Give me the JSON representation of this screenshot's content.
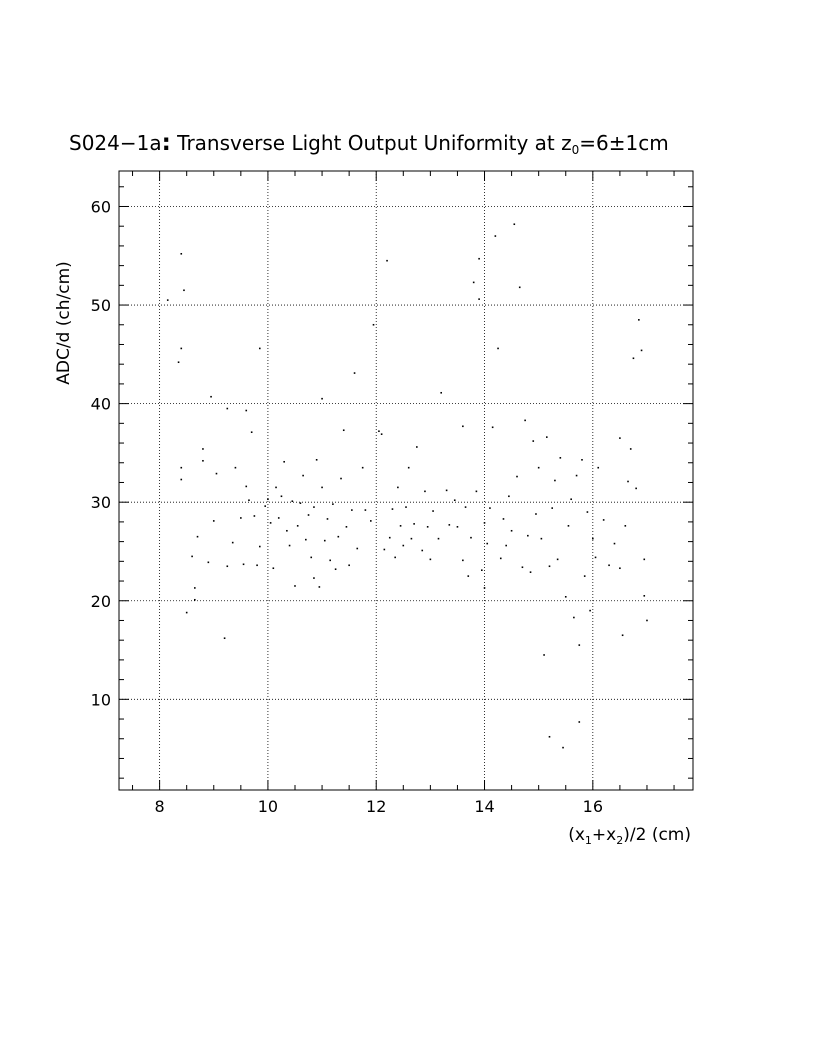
{
  "chart_data": {
    "type": "scatter",
    "title": {
      "part1": "S024−1a",
      "colon": ":",
      "part2": " Transverse Light Output Uniformity at z",
      "sub": "0",
      "part3": "=6±1cm"
    },
    "xlabel": {
      "p1": "(x",
      "s1": "1",
      "p2": "+x",
      "s2": "2",
      "p3": ")/2 (cm)"
    },
    "ylabel": "ADC/d (ch/cm)",
    "xlim": [
      7.25,
      17.85
    ],
    "ylim": [
      0.8,
      63.6
    ],
    "x_ticks": [
      "8",
      "10",
      "12",
      "14",
      "16"
    ],
    "y_ticks": [
      "10",
      "20",
      "30",
      "40",
      "50",
      "60"
    ],
    "grid": true,
    "marker_color": "#000000",
    "points": [
      [
        8.15,
        50.5
      ],
      [
        8.35,
        44.2
      ],
      [
        8.4,
        55.2
      ],
      [
        8.45,
        51.5
      ],
      [
        8.4,
        45.6
      ],
      [
        8.4,
        33.5
      ],
      [
        8.4,
        32.3
      ],
      [
        8.5,
        18.8
      ],
      [
        8.6,
        24.5
      ],
      [
        8.65,
        21.3
      ],
      [
        8.65,
        20.1
      ],
      [
        8.7,
        26.5
      ],
      [
        8.8,
        35.4
      ],
      [
        8.8,
        34.2
      ],
      [
        8.9,
        23.9
      ],
      [
        8.95,
        40.7
      ],
      [
        9.0,
        28.1
      ],
      [
        9.05,
        32.9
      ],
      [
        9.2,
        16.2
      ],
      [
        9.25,
        39.5
      ],
      [
        9.25,
        23.5
      ],
      [
        9.35,
        25.9
      ],
      [
        9.4,
        33.5
      ],
      [
        9.5,
        28.4
      ],
      [
        9.55,
        23.7
      ],
      [
        9.6,
        39.3
      ],
      [
        9.6,
        31.6
      ],
      [
        9.65,
        30.2
      ],
      [
        9.7,
        37.1
      ],
      [
        9.75,
        28.6
      ],
      [
        9.8,
        23.6
      ],
      [
        9.85,
        45.6
      ],
      [
        9.85,
        25.5
      ],
      [
        9.95,
        29.6
      ],
      [
        10.0,
        30.3
      ],
      [
        10.05,
        27.9
      ],
      [
        10.1,
        23.3
      ],
      [
        10.15,
        31.5
      ],
      [
        10.2,
        28.4
      ],
      [
        10.25,
        30.6
      ],
      [
        10.3,
        34.1
      ],
      [
        10.35,
        27.1
      ],
      [
        10.4,
        25.6
      ],
      [
        10.45,
        30.1
      ],
      [
        10.5,
        21.5
      ],
      [
        10.55,
        27.6
      ],
      [
        10.6,
        29.9
      ],
      [
        10.65,
        32.7
      ],
      [
        10.7,
        26.2
      ],
      [
        10.75,
        28.7
      ],
      [
        10.8,
        24.4
      ],
      [
        10.85,
        22.3
      ],
      [
        10.85,
        29.5
      ],
      [
        10.9,
        34.3
      ],
      [
        10.95,
        21.4
      ],
      [
        11.0,
        40.5
      ],
      [
        11.0,
        31.5
      ],
      [
        11.05,
        26.1
      ],
      [
        11.1,
        28.3
      ],
      [
        11.15,
        24.1
      ],
      [
        11.2,
        29.8
      ],
      [
        11.25,
        23.2
      ],
      [
        11.3,
        26.5
      ],
      [
        11.35,
        32.4
      ],
      [
        11.4,
        37.3
      ],
      [
        11.45,
        27.5
      ],
      [
        11.5,
        23.6
      ],
      [
        11.55,
        29.2
      ],
      [
        11.6,
        43.1
      ],
      [
        11.65,
        25.3
      ],
      [
        11.75,
        33.5
      ],
      [
        11.8,
        29.2
      ],
      [
        11.9,
        28.1
      ],
      [
        11.95,
        48.0
      ],
      [
        12.05,
        37.2
      ],
      [
        12.1,
        36.9
      ],
      [
        12.15,
        25.2
      ],
      [
        12.2,
        54.5
      ],
      [
        12.25,
        26.4
      ],
      [
        12.3,
        29.3
      ],
      [
        12.35,
        24.4
      ],
      [
        12.4,
        31.5
      ],
      [
        12.45,
        27.6
      ],
      [
        12.5,
        25.6
      ],
      [
        12.55,
        29.5
      ],
      [
        12.6,
        33.5
      ],
      [
        12.65,
        26.3
      ],
      [
        12.7,
        27.8
      ],
      [
        12.75,
        35.6
      ],
      [
        12.85,
        25.1
      ],
      [
        12.9,
        31.1
      ],
      [
        12.95,
        27.5
      ],
      [
        13.0,
        24.2
      ],
      [
        13.05,
        29.1
      ],
      [
        13.15,
        26.3
      ],
      [
        13.2,
        41.1
      ],
      [
        13.3,
        31.2
      ],
      [
        13.35,
        27.7
      ],
      [
        13.45,
        30.2
      ],
      [
        13.5,
        27.5
      ],
      [
        13.6,
        24.1
      ],
      [
        13.6,
        37.7
      ],
      [
        13.65,
        29.5
      ],
      [
        13.7,
        22.5
      ],
      [
        13.75,
        26.4
      ],
      [
        13.8,
        52.3
      ],
      [
        13.85,
        31.1
      ],
      [
        13.9,
        54.7
      ],
      [
        13.9,
        50.6
      ],
      [
        13.95,
        23.1
      ],
      [
        14.0,
        27.9
      ],
      [
        14.0,
        21.3
      ],
      [
        14.05,
        25.8
      ],
      [
        14.1,
        29.4
      ],
      [
        14.15,
        37.6
      ],
      [
        14.2,
        57.0
      ],
      [
        14.25,
        45.6
      ],
      [
        14.3,
        24.3
      ],
      [
        14.35,
        28.3
      ],
      [
        14.4,
        25.6
      ],
      [
        14.45,
        30.6
      ],
      [
        14.5,
        27.1
      ],
      [
        14.55,
        58.2
      ],
      [
        14.6,
        32.6
      ],
      [
        14.65,
        51.8
      ],
      [
        14.7,
        23.4
      ],
      [
        14.75,
        38.3
      ],
      [
        14.8,
        26.6
      ],
      [
        14.85,
        22.9
      ],
      [
        14.9,
        36.2
      ],
      [
        14.95,
        28.8
      ],
      [
        15.0,
        33.5
      ],
      [
        15.05,
        26.3
      ],
      [
        15.1,
        14.5
      ],
      [
        15.15,
        36.6
      ],
      [
        15.2,
        23.5
      ],
      [
        15.2,
        6.2
      ],
      [
        15.25,
        29.4
      ],
      [
        15.3,
        32.2
      ],
      [
        15.35,
        24.2
      ],
      [
        15.4,
        34.5
      ],
      [
        15.45,
        5.1
      ],
      [
        15.5,
        20.4
      ],
      [
        15.55,
        27.6
      ],
      [
        15.6,
        30.3
      ],
      [
        15.65,
        18.3
      ],
      [
        15.7,
        32.7
      ],
      [
        15.75,
        7.7
      ],
      [
        15.75,
        15.5
      ],
      [
        15.8,
        34.3
      ],
      [
        15.85,
        22.5
      ],
      [
        15.9,
        29.0
      ],
      [
        15.95,
        19.0
      ],
      [
        16.0,
        26.3
      ],
      [
        16.05,
        24.4
      ],
      [
        16.1,
        33.5
      ],
      [
        16.2,
        28.2
      ],
      [
        16.3,
        23.6
      ],
      [
        16.4,
        25.8
      ],
      [
        16.5,
        36.5
      ],
      [
        16.5,
        23.3
      ],
      [
        16.55,
        16.5
      ],
      [
        16.6,
        27.6
      ],
      [
        16.65,
        32.1
      ],
      [
        16.7,
        35.4
      ],
      [
        16.75,
        44.6
      ],
      [
        16.8,
        31.4
      ],
      [
        16.85,
        48.5
      ],
      [
        16.9,
        45.4
      ],
      [
        16.95,
        20.5
      ],
      [
        17.0,
        18.0
      ],
      [
        16.95,
        24.2
      ]
    ]
  }
}
